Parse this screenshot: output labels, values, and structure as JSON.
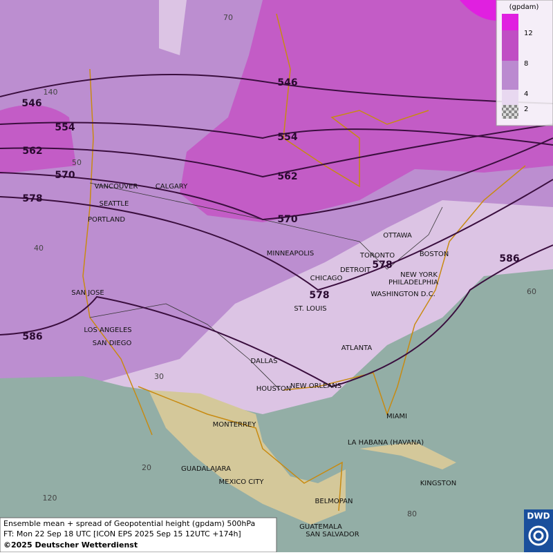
{
  "legend": {
    "unit": "(gpdam)",
    "levels": [
      12,
      8,
      4,
      2
    ]
  },
  "contour_labels": [
    546,
    546,
    554,
    554,
    562,
    562,
    570,
    570,
    578,
    578,
    578,
    586,
    586
  ],
  "cities": [
    "VANCOUVER",
    "CALGARY",
    "SEATTLE",
    "PORTLAND",
    "MINNEAPOLIS",
    "OTTAWA",
    "TORONTO",
    "BOSTON",
    "DETROIT",
    "NEW YORK",
    "PHILADELPHIA",
    "CHICAGO",
    "WASHINGTON D.C.",
    "ST. LOUIS",
    "SAN JOSE",
    "LOS ANGELES",
    "SAN DIEGO",
    "ATLANTA",
    "DALLAS",
    "HOUSTON",
    "NEW ORLEANS",
    "MIAMI",
    "MONTERREY",
    "LA HABANA (HAVANA)",
    "GUADALAJARA",
    "MEXICO CITY",
    "KINGSTON",
    "BELMOPAN",
    "GUATEMALA",
    "SAN SALVADOR"
  ],
  "graticule_labels": [
    70,
    140,
    50,
    40,
    30,
    20,
    120,
    60,
    80
  ],
  "footer": {
    "lines": [
      "Ensemble mean + spread of Geopotential height (gpdam) 500hPa",
      "FT: Mon 22 Sep 18 UTC [ICON EPS 2025 Sep 15 12UTC +174h]",
      "©2025 Deutscher Wetterdienst"
    ]
  },
  "logo": "DWD"
}
